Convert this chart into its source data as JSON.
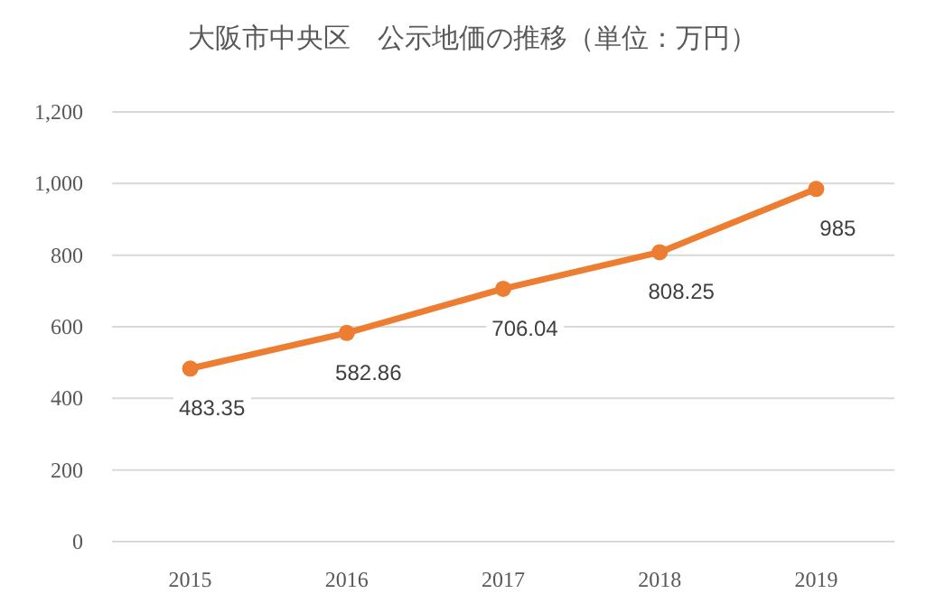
{
  "chart_data": {
    "type": "line",
    "title": "大阪市中央区　公示地価の推移（単位：万円）",
    "categories": [
      "2015",
      "2016",
      "2017",
      "2018",
      "2019"
    ],
    "series": [
      {
        "color": "#ed7d31",
        "values": [
          483.35,
          582.86,
          706.04,
          808.25,
          985
        ]
      }
    ],
    "ylim": [
      0,
      1200
    ],
    "yticks": [
      0,
      {
        "value": 200,
        "label": "200"
      },
      {
        "value": 400,
        "label": "400"
      },
      {
        "value": 600,
        "label": "600"
      },
      {
        "value": 800,
        "label": "800"
      },
      {
        "value": 1000,
        "label": "1,000"
      },
      {
        "value": 1200,
        "label": "1,200"
      }
    ],
    "grid": "y",
    "marker": "circle",
    "data_labels": true
  }
}
